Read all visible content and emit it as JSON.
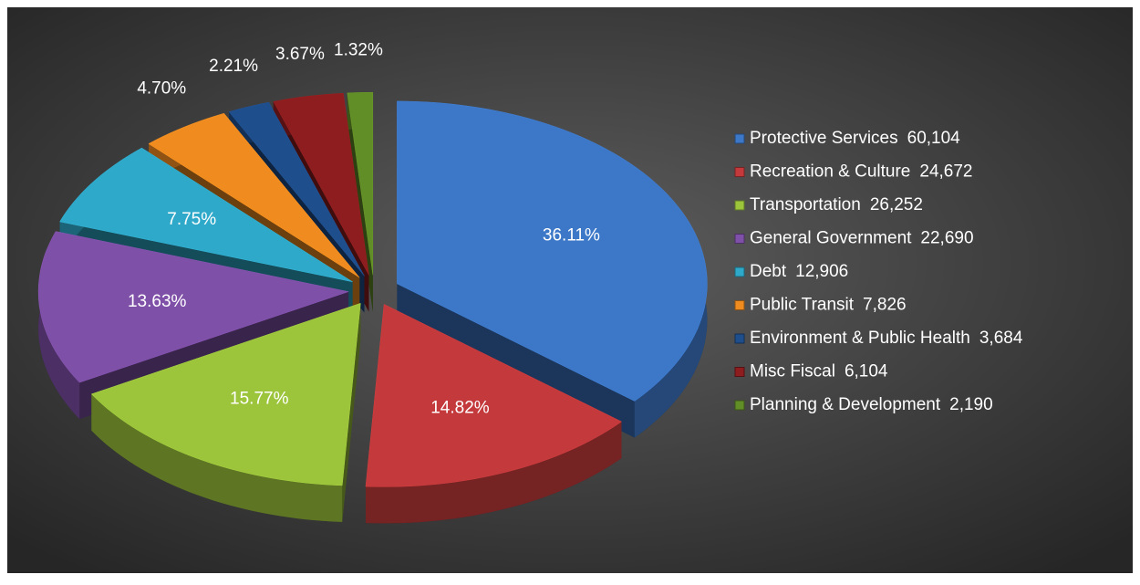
{
  "chart_data": {
    "type": "pie",
    "categories": [
      "Protective Services",
      "Recreation & Culture",
      "Transportation",
      "General Government",
      "Debt",
      "Public Transit",
      "Environment & Public Health",
      "Misc Fiscal",
      "Planning & Development"
    ],
    "values": [
      60104,
      24672,
      26252,
      22690,
      12906,
      7826,
      3684,
      6104,
      2190
    ],
    "value_labels": [
      "60,104",
      "24,672",
      "26,252",
      "22,690",
      "12,906",
      "7,826",
      "3,684",
      "6,104",
      "2,190"
    ],
    "percent_labels": [
      "36.11%",
      "14.82%",
      "15.77%",
      "13.63%",
      "7.75%",
      "4.70%",
      "2.21%",
      "3.67%",
      "1.32%"
    ],
    "colors": [
      "#3d78c8",
      "#c43a3c",
      "#9cc53c",
      "#7f50a8",
      "#2fa9c9",
      "#f08b1f",
      "#1f4e8c",
      "#8e1d1f",
      "#628e27"
    ],
    "legend": "right"
  }
}
